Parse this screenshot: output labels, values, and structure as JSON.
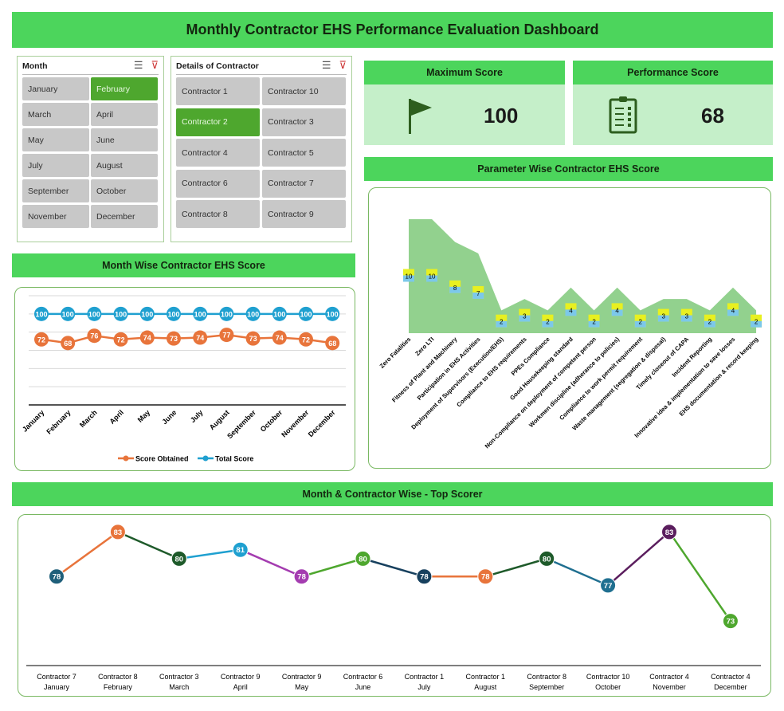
{
  "title": "Monthly Contractor EHS Performance Evaluation Dashboard",
  "colors": {
    "header_green": "#4cd55c",
    "card_green": "#c5efc9",
    "selected": "#4ea72e",
    "unselected": "#c8c8c8",
    "score_obtained": "#e8743b",
    "total_score": "#1fa0d0",
    "area": "#7fc97a"
  },
  "month_slicer": {
    "title": "Month",
    "selected": "February",
    "items": [
      "January",
      "February",
      "March",
      "April",
      "May",
      "June",
      "July",
      "August",
      "September",
      "October",
      "November",
      "December"
    ]
  },
  "contractor_slicer": {
    "title": "Details of Contractor",
    "selected": "Contractor 2",
    "items": [
      "Contractor 1",
      "Contractor 10",
      "Contractor 2",
      "Contractor 3",
      "Contractor 4",
      "Contractor 5",
      "Contractor 6",
      "Contractor 7",
      "Contractor 8",
      "Contractor 9"
    ]
  },
  "kpis": {
    "max": {
      "label": "Maximum Score",
      "value": "100",
      "icon": "flag-icon"
    },
    "perf": {
      "label": "Performance Score",
      "value": "68",
      "icon": "clipboard-checklist-icon"
    }
  },
  "sections": {
    "month_wise": "Month Wise Contractor EHS Score",
    "parameter_wise": "Parameter Wise Contractor EHS Score",
    "top_scorer": "Month & Contractor Wise - Top Scorer"
  },
  "chart_data": [
    {
      "type": "line",
      "categories": [
        "January",
        "February",
        "March",
        "April",
        "May",
        "June",
        "July",
        "August",
        "September",
        "October",
        "November",
        "December"
      ],
      "series": [
        {
          "name": "Score Obtained",
          "color": "#e8743b",
          "values": [
            72,
            68,
            76,
            72,
            74,
            73,
            74,
            77,
            73,
            74,
            72,
            68
          ]
        },
        {
          "name": "Total Score",
          "color": "#1fa0d0",
          "values": [
            100,
            100,
            100,
            100,
            100,
            100,
            100,
            100,
            100,
            100,
            100,
            100
          ]
        }
      ],
      "ylim": [
        0,
        120
      ],
      "grid": true,
      "legend": "bottom"
    },
    {
      "type": "area",
      "categories": [
        "Zero Fatalities",
        "Zero LTI",
        "Fitness of Plant and Machinery",
        "Participation in EHS Activities",
        "Deployment of Supervisors (Execution/EHS)",
        "Compliance to EHS requirements",
        "PPEs Compliance",
        "Good Housekeeping standard",
        "Non-Compliance on deployment of competent person",
        "Workmen discipline (adherance to policies)",
        "Compliance to work permit requirement",
        "Waste management (segregation & disposal)",
        "Timely closeout of CAPA",
        "Incident Reporting",
        "Innovative idea & implementation to save losses",
        "EHS documentation & record keeping"
      ],
      "values": [
        10,
        10,
        8,
        7,
        2,
        3,
        2,
        4,
        2,
        4,
        2,
        3,
        3,
        2,
        4,
        2
      ],
      "ylim": [
        0,
        10
      ],
      "grid": false
    },
    {
      "type": "line",
      "categories": [
        {
          "contractor": "Contractor 7",
          "month": "January"
        },
        {
          "contractor": "Contractor 8",
          "month": "February"
        },
        {
          "contractor": "Contractor 3",
          "month": "March"
        },
        {
          "contractor": "Contractor 9",
          "month": "April"
        },
        {
          "contractor": "Contractor 9",
          "month": "May"
        },
        {
          "contractor": "Contractor 6",
          "month": "June"
        },
        {
          "contractor": "Contractor 1",
          "month": "July"
        },
        {
          "contractor": "Contractor 1",
          "month": "August"
        },
        {
          "contractor": "Contractor 8",
          "month": "September"
        },
        {
          "contractor": "Contractor 10",
          "month": "October"
        },
        {
          "contractor": "Contractor 4",
          "month": "November"
        },
        {
          "contractor": "Contractor 4",
          "month": "December"
        }
      ],
      "values": [
        78,
        83,
        80,
        81,
        78,
        80,
        78,
        78,
        80,
        77,
        83,
        73
      ],
      "point_colors": [
        "#1f5f7a",
        "#e8743b",
        "#1e5a2a",
        "#1fa0d0",
        "#a43cb0",
        "#4ea72e",
        "#17405e",
        "#e8743b",
        "#1e5a2a",
        "#1f6f90",
        "#5b1e5e",
        "#4ea72e"
      ],
      "ylim": [
        68,
        85
      ],
      "grid": false
    }
  ]
}
